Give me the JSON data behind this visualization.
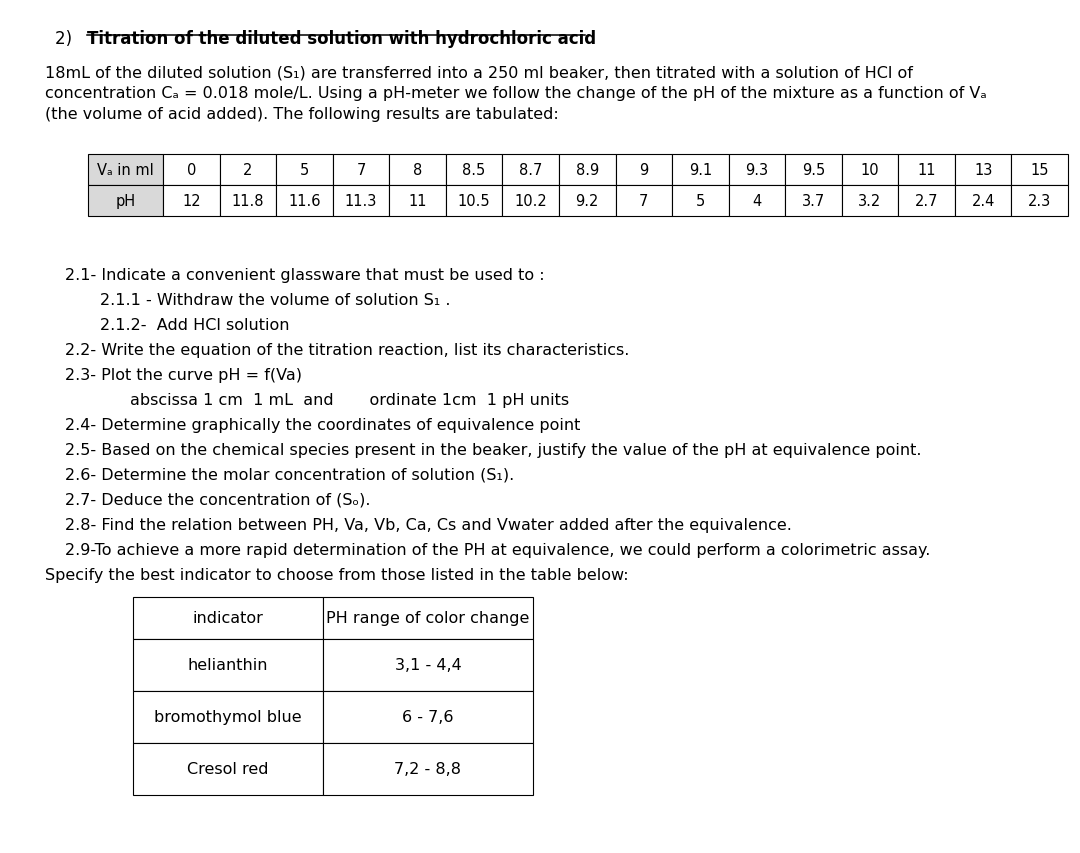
{
  "title_number": "2)",
  "title_text": "Titration of the diluted solution with hydrochloric acid",
  "para_line1": "18mL of the diluted solution (S₁) are transferred into a 250 ml beaker, then titrated with a solution of HCl of",
  "para_line2": "concentration Cₐ = 0.018 mole/L. Using a pH-meter we follow the change of the pH of the mixture as a function of Vₐ",
  "para_line3": "(the volume of acid added). The following results are tabulated:",
  "table1_row1": [
    "Vₐ in ml",
    "0",
    "2",
    "5",
    "7",
    "8",
    "8.5",
    "8.7",
    "8.9",
    "9",
    "9.1",
    "9.3",
    "9.5",
    "10",
    "11",
    "13",
    "15"
  ],
  "table1_row2": [
    "pH",
    "12",
    "11.8",
    "11.6",
    "11.3",
    "11",
    "10.5",
    "10.2",
    "9.2",
    "7",
    "5",
    "4",
    "3.7",
    "3.2",
    "2.7",
    "2.4",
    "2.3"
  ],
  "q21": "2.1- Indicate a convenient glassware that must be used to :",
  "q211": "2.1.1 - Withdraw the volume of solution S₁ .",
  "q212": "2.1.2-  Add HCl solution",
  "q22": "2.2- Write the equation of the titration reaction, list its characteristics.",
  "q23": "2.3- Plot the curve pH = f(Va)",
  "q23sub": "abscissa 1 cm  1 mL  and       ordinate 1cm  1 pH units",
  "q24": "2.4- Determine graphically the coordinates of equivalence point",
  "q25": "2.5- Based on the chemical species present in the beaker, justify the value of the pH at equivalence point.",
  "q26": "2.6- Determine the molar concentration of solution (S₁).",
  "q27": "2.7- Deduce the concentration of (Sₒ).",
  "q28": "2.8- Find the relation between PH, Va, Vb, Ca, Cs and Vwater added after the equivalence.",
  "q29": "2.9-To achieve a more rapid determination of the PH at equivalence, we could perform a colorimetric assay.",
  "q29b": "Specify the best indicator to choose from those listed in the table below:",
  "table2_rows": [
    [
      "indicator",
      "PH range of color change"
    ],
    [
      "helianthin",
      "3,1 - 4,4"
    ],
    [
      "bromothymol blue",
      "6 - 7,6"
    ],
    [
      "Cresol red",
      "7,2 - 8,8"
    ]
  ],
  "bg_color": "#ffffff"
}
